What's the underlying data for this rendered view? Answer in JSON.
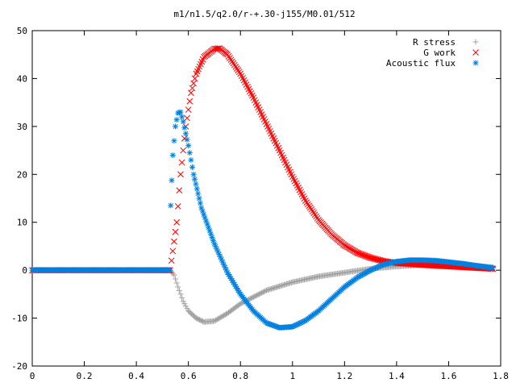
{
  "chart_data": {
    "type": "scatter",
    "title": "m1/n1.5/q2.0/r-+.30-j155/M0.01/512",
    "xlabel": "",
    "ylabel": "",
    "xlim": [
      0,
      1.8
    ],
    "ylim": [
      -20,
      50
    ],
    "xticks": [
      "0",
      "0.2",
      "0.4",
      "0.6",
      "0.8",
      "1",
      "1.2",
      "1.4",
      "1.6",
      "1.8"
    ],
    "yticks": [
      "-20",
      "-10",
      "0",
      "10",
      "20",
      "30",
      "40",
      "50"
    ],
    "grid": false,
    "legend_position": "top-right",
    "series": [
      {
        "name": "R stress",
        "marker": "+",
        "color": "#a0a0a0",
        "points": [
          [
            0.0,
            0
          ],
          [
            0.1,
            0
          ],
          [
            0.2,
            0
          ],
          [
            0.3,
            0
          ],
          [
            0.4,
            0
          ],
          [
            0.5,
            0
          ],
          [
            0.53,
            0
          ],
          [
            0.545,
            -1.0
          ],
          [
            0.56,
            -3.5
          ],
          [
            0.58,
            -6.5
          ],
          [
            0.6,
            -8.5
          ],
          [
            0.63,
            -10.0
          ],
          [
            0.66,
            -10.8
          ],
          [
            0.7,
            -10.6
          ],
          [
            0.75,
            -9.0
          ],
          [
            0.8,
            -7.0
          ],
          [
            0.9,
            -4.2
          ],
          [
            1.0,
            -2.5
          ],
          [
            1.1,
            -1.3
          ],
          [
            1.2,
            -0.5
          ],
          [
            1.3,
            0.3
          ],
          [
            1.4,
            0.8
          ],
          [
            1.5,
            1.1
          ],
          [
            1.6,
            1.2
          ],
          [
            1.7,
            0.9
          ],
          [
            1.77,
            0.6
          ]
        ]
      },
      {
        "name": "G work",
        "marker": "x",
        "color": "#ff0000",
        "points": [
          [
            0.0,
            0
          ],
          [
            0.1,
            0
          ],
          [
            0.2,
            0
          ],
          [
            0.3,
            0
          ],
          [
            0.4,
            0
          ],
          [
            0.5,
            0
          ],
          [
            0.53,
            0
          ],
          [
            0.54,
            4
          ],
          [
            0.555,
            10
          ],
          [
            0.57,
            20
          ],
          [
            0.59,
            30
          ],
          [
            0.61,
            37
          ],
          [
            0.63,
            41
          ],
          [
            0.66,
            44.5
          ],
          [
            0.7,
            46.2
          ],
          [
            0.72,
            46.3
          ],
          [
            0.75,
            45
          ],
          [
            0.8,
            41
          ],
          [
            0.85,
            36
          ],
          [
            0.9,
            30.5
          ],
          [
            0.95,
            25
          ],
          [
            1.0,
            19.5
          ],
          [
            1.05,
            14.5
          ],
          [
            1.1,
            10.5
          ],
          [
            1.15,
            7.5
          ],
          [
            1.2,
            5.2
          ],
          [
            1.25,
            3.6
          ],
          [
            1.3,
            2.6
          ],
          [
            1.35,
            1.9
          ],
          [
            1.4,
            1.5
          ],
          [
            1.5,
            1.1
          ],
          [
            1.6,
            0.8
          ],
          [
            1.7,
            0.5
          ],
          [
            1.77,
            0.3
          ]
        ]
      },
      {
        "name": "Acoustic flux",
        "marker": "*",
        "color": "#0080e0",
        "points": [
          [
            0.0,
            0
          ],
          [
            0.1,
            0
          ],
          [
            0.2,
            0
          ],
          [
            0.3,
            0
          ],
          [
            0.4,
            0
          ],
          [
            0.5,
            0
          ],
          [
            0.53,
            0
          ],
          [
            0.532,
            13.5
          ],
          [
            0.54,
            24
          ],
          [
            0.55,
            30
          ],
          [
            0.56,
            32.8
          ],
          [
            0.57,
            33
          ],
          [
            0.58,
            31
          ],
          [
            0.6,
            26
          ],
          [
            0.62,
            20
          ],
          [
            0.65,
            13
          ],
          [
            0.7,
            5.5
          ],
          [
            0.75,
            -0.5
          ],
          [
            0.8,
            -5
          ],
          [
            0.85,
            -8.5
          ],
          [
            0.9,
            -11
          ],
          [
            0.95,
            -12
          ],
          [
            1.0,
            -11.8
          ],
          [
            1.05,
            -10.5
          ],
          [
            1.1,
            -8.5
          ],
          [
            1.15,
            -6
          ],
          [
            1.2,
            -3.5
          ],
          [
            1.25,
            -1.5
          ],
          [
            1.3,
            0
          ],
          [
            1.35,
            1.2
          ],
          [
            1.4,
            1.8
          ],
          [
            1.45,
            2.1
          ],
          [
            1.5,
            2.1
          ],
          [
            1.55,
            2.0
          ],
          [
            1.6,
            1.7
          ],
          [
            1.65,
            1.4
          ],
          [
            1.7,
            1.0
          ],
          [
            1.77,
            0.5
          ]
        ]
      }
    ]
  }
}
